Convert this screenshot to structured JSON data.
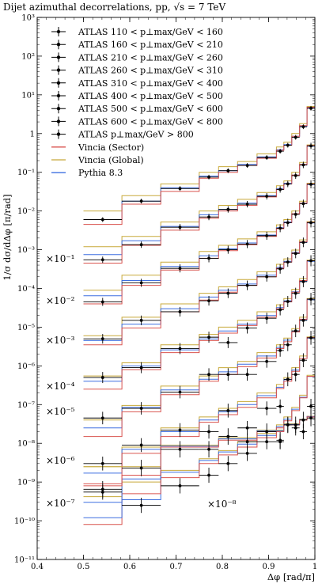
{
  "chart_data": {
    "type": "line",
    "title": "Dijet azimuthal decorrelations, pp, √s = 7 TeV",
    "xlabel": "Δφ [rad/π]",
    "ylabel": "1/σ dσ/dΔφ [π/rad]",
    "xlim": [
      0.4,
      1.0
    ],
    "ylim": [
      1e-11,
      1000
    ],
    "yscale": "log",
    "x_ticks": [
      "0.4",
      "0.5",
      "0.6",
      "0.7",
      "0.8",
      "0.9",
      "1"
    ],
    "y_ticks": [
      "10⁻¹¹",
      "10⁻¹⁰",
      "10⁻⁹",
      "10⁻⁸",
      "10⁻⁷",
      "10⁻⁶",
      "10⁻⁵",
      "10⁻⁴",
      "10⁻³",
      "10⁻²",
      "10⁻¹",
      "1",
      "10¹",
      "10²",
      "10³"
    ],
    "legend_position": "top-left",
    "legend": [
      "ATLAS 110 < p⊥max/GeV < 160",
      "ATLAS 160 < p⊥max/GeV < 210",
      "ATLAS 210 < p⊥max/GeV < 260",
      "ATLAS 260 < p⊥max/GeV < 310",
      "ATLAS 310 < p⊥max/GeV < 400",
      "ATLAS 400 < p⊥max/GeV < 500",
      "ATLAS 500 < p⊥max/GeV < 600",
      "ATLAS 600 < p⊥max/GeV < 800",
      "ATLAS p⊥max/GeV > 800",
      "Vincia (Sector)",
      "Vincia (Global)",
      "Pythia 8.3"
    ],
    "model_colors": {
      "Vincia (Sector)": "#d9534f",
      "Vincia (Global)": "#c8a93a",
      "Pythia 8.3": "#3d6fe0"
    },
    "scale_annotations": [
      "×10⁻¹",
      "×10⁻²",
      "×10⁻³",
      "×10⁻⁴",
      "×10⁻⁵",
      "×10⁻⁶",
      "×10⁻⁷",
      "×10⁻⁸"
    ],
    "bin_edges": [
      0.5,
      0.583,
      0.667,
      0.75,
      0.792,
      0.833,
      0.875,
      0.917,
      0.933,
      0.95,
      0.967,
      0.983,
      1.0
    ],
    "series": [
      {
        "name": "ATLAS 110 < p⊥max/GeV < 160",
        "scale": 1,
        "data": [
          0.006,
          0.018,
          0.038,
          0.075,
          0.11,
          0.15,
          0.24,
          0.35,
          0.5,
          0.8,
          1.5,
          4.5
        ],
        "sector": [
          0.0045,
          0.015,
          0.032,
          0.07,
          0.1,
          0.15,
          0.23,
          0.37,
          0.5,
          0.85,
          1.6,
          4.8
        ],
        "global": [
          0.01,
          0.025,
          0.05,
          0.1,
          0.14,
          0.19,
          0.3,
          0.45,
          0.6,
          1.0,
          1.8,
          5.0
        ],
        "pythia": [
          0.006,
          0.018,
          0.04,
          0.08,
          0.11,
          0.16,
          0.25,
          0.38,
          0.52,
          0.85,
          1.55,
          4.6
        ]
      },
      {
        "name": "ATLAS 160 < p⊥max/GeV < 210",
        "scale": 0.1,
        "data": [
          0.0055,
          0.0135,
          0.038,
          0.07,
          0.11,
          0.15,
          0.24,
          0.36,
          0.5,
          0.82,
          1.55,
          4.8
        ],
        "sector": [
          0.0045,
          0.013,
          0.032,
          0.065,
          0.1,
          0.14,
          0.23,
          0.36,
          0.5,
          0.85,
          1.6,
          4.9
        ],
        "global": [
          0.012,
          0.022,
          0.052,
          0.1,
          0.14,
          0.2,
          0.3,
          0.45,
          0.6,
          1.0,
          1.8,
          5.1
        ],
        "pythia": [
          0.0075,
          0.017,
          0.04,
          0.08,
          0.11,
          0.16,
          0.25,
          0.38,
          0.52,
          0.85,
          1.55,
          4.7
        ]
      },
      {
        "name": "ATLAS 210 < p⊥max/GeV < 260",
        "scale": 0.01,
        "data": [
          0.0045,
          0.014,
          0.033,
          0.06,
          0.1,
          0.14,
          0.23,
          0.36,
          0.5,
          0.82,
          1.55,
          4.9
        ],
        "sector": [
          0.004,
          0.012,
          0.03,
          0.06,
          0.095,
          0.135,
          0.22,
          0.35,
          0.5,
          0.85,
          1.6,
          5.0
        ],
        "global": [
          0.009,
          0.022,
          0.048,
          0.09,
          0.13,
          0.19,
          0.29,
          0.44,
          0.6,
          1.0,
          1.8,
          5.2
        ],
        "pythia": [
          0.0065,
          0.016,
          0.037,
          0.07,
          0.105,
          0.15,
          0.24,
          0.37,
          0.52,
          0.85,
          1.55,
          4.8
        ]
      },
      {
        "name": "ATLAS 260 < p⊥max/GeV < 310",
        "scale": 0.001,
        "data": [
          0.005,
          0.015,
          0.025,
          0.048,
          0.075,
          0.12,
          0.2,
          0.32,
          0.48,
          0.8,
          1.55,
          5.0
        ],
        "sector": [
          0.0035,
          0.0095,
          0.025,
          0.05,
          0.08,
          0.12,
          0.2,
          0.33,
          0.48,
          0.82,
          1.6,
          5.1
        ],
        "global": [
          0.006,
          0.018,
          0.04,
          0.075,
          0.11,
          0.17,
          0.27,
          0.42,
          0.58,
          0.98,
          1.8,
          5.3
        ],
        "pythia": [
          0.0045,
          0.012,
          0.03,
          0.06,
          0.09,
          0.13,
          0.22,
          0.35,
          0.5,
          0.85,
          1.55,
          4.9
        ]
      },
      {
        "name": "ATLAS 310 < p⊥max/GeV < 400",
        "scale": 0.0001,
        "data": [
          0.005,
          0.009,
          0.028,
          0.055,
          0.04,
          0.095,
          0.17,
          0.28,
          0.46,
          0.75,
          1.5,
          5.2
        ],
        "sector": [
          0.0025,
          0.008,
          0.022,
          0.045,
          0.07,
          0.11,
          0.18,
          0.3,
          0.45,
          0.8,
          1.6,
          5.2
        ],
        "global": [
          0.0055,
          0.012,
          0.035,
          0.065,
          0.1,
          0.15,
          0.25,
          0.38,
          0.55,
          0.95,
          1.8,
          5.4
        ],
        "pythia": [
          0.004,
          0.01,
          0.026,
          0.05,
          0.08,
          0.12,
          0.2,
          0.32,
          0.48,
          0.82,
          1.55,
          5.0
        ]
      },
      {
        "name": "ATLAS 400 < p⊥max/GeV < 500",
        "scale": 1e-05,
        "data": [
          0.0045,
          0.008,
          0.021,
          0.06,
          0.06,
          0.06,
          0.13,
          0.25,
          0.35,
          0.8,
          1.5,
          5.3
        ],
        "sector": [
          0.0015,
          0.0065,
          0.018,
          0.04,
          0.06,
          0.095,
          0.16,
          0.28,
          0.42,
          0.75,
          1.6,
          5.3
        ],
        "global": [
          0.004,
          0.0095,
          0.03,
          0.055,
          0.09,
          0.13,
          0.22,
          0.35,
          0.52,
          0.92,
          1.8,
          5.5
        ],
        "pythia": [
          0.0025,
          0.0085,
          0.024,
          0.045,
          0.07,
          0.11,
          0.18,
          0.3,
          0.46,
          0.8,
          1.55,
          5.1
        ]
      },
      {
        "name": "ATLAS 500 < p⊥max/GeV < 600",
        "scale": 1e-06,
        "data": [
          0.003,
          0.009,
          0.022,
          0.02,
          0.07,
          0.025,
          0.08,
          0.09,
          0.45,
          0.6,
          1.4,
          5.3
        ],
        "sector": [
          0.0009,
          0.0055,
          0.015,
          0.035,
          0.055,
          0.085,
          0.15,
          0.26,
          0.4,
          0.72,
          1.55,
          5.4
        ],
        "global": [
          0.0025,
          0.008,
          0.025,
          0.048,
          0.08,
          0.12,
          0.2,
          0.33,
          0.5,
          0.9,
          1.8,
          5.6
        ],
        "pythia": [
          0.0017,
          0.007,
          0.02,
          0.04,
          0.065,
          0.1,
          0.17,
          0.28,
          0.44,
          0.78,
          1.55,
          5.2
        ]
      },
      {
        "name": "ATLAS 600 < p⊥max/GeV < 800",
        "scale": 1e-07,
        "data": [
          0.0055,
          0.0025,
          0.008,
          0.015,
          0.03,
          0.055,
          0.11,
          0.11,
          0.3,
          0.25,
          0.2,
          0.9
        ],
        "sector": [
          0.0008,
          0.005,
          0.013,
          0.03,
          0.05,
          0.08,
          0.14,
          0.25,
          0.38,
          0.7,
          1.5,
          5.4
        ],
        "global": [
          0.0042,
          0.01,
          0.02,
          0.04,
          0.065,
          0.11,
          0.18,
          0.3,
          0.48,
          0.85,
          1.75,
          5.7
        ],
        "pythia": [
          0.003,
          0.0035,
          0.018,
          0.036,
          0.06,
          0.095,
          0.16,
          0.27,
          0.42,
          0.76,
          1.55,
          5.3
        ]
      },
      {
        "name": "ATLAS p⊥max/GeV > 800",
        "scale": 1e-08,
        "data": [
          0.065,
          0.23,
          0.7,
          0.7,
          1.5,
          1.1,
          2.0,
          1.2,
          3.0,
          3.0,
          4.0,
          4.5
        ],
        "sector": [
          0.08,
          0.15,
          0.8,
          0.8,
          1.2,
          1.2,
          2.0,
          2.0,
          3.0,
          3.0,
          4.0,
          4.8
        ],
        "global": [
          0.25,
          0.25,
          0.9,
          0.9,
          1.4,
          1.4,
          2.2,
          2.2,
          3.2,
          3.2,
          4.2,
          5.0
        ],
        "pythia": [
          0.012,
          0.12,
          0.85,
          0.85,
          1.3,
          1.3,
          2.1,
          2.1,
          3.1,
          3.1,
          4.1,
          4.9
        ]
      }
    ]
  }
}
